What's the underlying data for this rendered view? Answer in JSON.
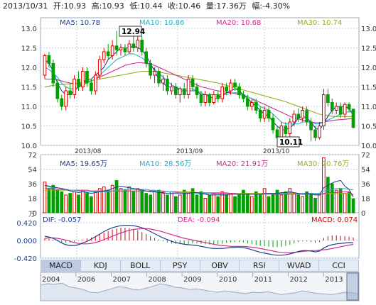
{
  "header": {
    "date": "2013/10/31",
    "open": "开:10.93",
    "high": "高:10.93",
    "low": "低:10.44",
    "close": "收:10.46",
    "volume": "量:17.36万",
    "change": "幅:-4.30%"
  },
  "ma_legend": {
    "ma5": "MA5: 10.78",
    "ma10": "MA10: 10.86",
    "ma20": "MA20: 10.68",
    "ma30": "MA30: 10.74"
  },
  "vol_legend": {
    "ma5": "MA5: 19.65万",
    "ma10": "MA10: 28.56万",
    "ma20": "MA20: 21.91万",
    "ma30": "MA30: 20.76万"
  },
  "vol_unit": "万",
  "macd_legend": {
    "dif": "DIF: -0.057",
    "dea": "DEA: -0.094",
    "macd": "MACD: 0.074"
  },
  "price_high_label": "12.94",
  "price_low_label": "10.11",
  "date_ticks": [
    "2013/08",
    "2013/09",
    "2013/10"
  ],
  "tabs": [
    "MACD",
    "KDJ",
    "BOLL",
    "PSY",
    "OBV",
    "RSI",
    "WVAD",
    "CCI"
  ],
  "active_tab": "MACD",
  "nav_years": [
    "2004",
    "2006",
    "2007",
    "2008",
    "2009",
    "2010",
    "2011",
    "2012",
    "2013"
  ],
  "colors": {
    "up": "#dd0000",
    "down": "#00a000",
    "ma5": "#1e3f8c",
    "ma10": "#24b0c8",
    "ma20": "#d42a8e",
    "ma30": "#9aab1e",
    "grid": "#c9d3e0",
    "dif": "#1e3f8c",
    "dea": "#d42a8e"
  },
  "chart_data": {
    "type": "candlestick",
    "price_axis": {
      "ylim": [
        10.0,
        13.0
      ],
      "ticks": [
        "13.0",
        "12.5",
        "12.0",
        "11.5",
        "11.0",
        "10.5",
        "10.0"
      ]
    },
    "volume_axis": {
      "ylim": [
        0,
        72
      ],
      "ticks": [
        "72",
        "54",
        "36",
        "18",
        "0"
      ],
      "unit": "万"
    },
    "macd_axis": {
      "ylim": [
        -0.42,
        0.42
      ],
      "ticks": [
        "0.420",
        "0.000",
        "-0.420"
      ]
    },
    "candles": [
      [
        11.8,
        12.3,
        12.35,
        11.7
      ],
      [
        12.3,
        12.1,
        12.4,
        12.0
      ],
      [
        12.1,
        11.6,
        12.2,
        11.5
      ],
      [
        11.6,
        11.2,
        11.7,
        11.1
      ],
      [
        11.2,
        11.0,
        11.3,
        10.9
      ],
      [
        11.0,
        11.4,
        11.5,
        10.9
      ],
      [
        11.4,
        11.3,
        11.6,
        11.2
      ],
      [
        11.3,
        11.7,
        11.8,
        11.2
      ],
      [
        11.7,
        11.5,
        11.9,
        11.4
      ],
      [
        11.5,
        11.9,
        12.0,
        11.4
      ],
      [
        11.9,
        11.6,
        12.0,
        11.5
      ],
      [
        11.6,
        11.4,
        11.7,
        11.3
      ],
      [
        11.4,
        11.8,
        11.9,
        11.3
      ],
      [
        11.8,
        12.2,
        12.3,
        11.7
      ],
      [
        12.2,
        12.4,
        12.5,
        12.1
      ],
      [
        12.4,
        12.3,
        12.6,
        12.2
      ],
      [
        12.3,
        12.55,
        12.7,
        12.2
      ],
      [
        12.55,
        12.45,
        12.94,
        12.3
      ],
      [
        12.45,
        12.5,
        12.6,
        12.3
      ],
      [
        12.5,
        12.4,
        12.6,
        12.3
      ],
      [
        12.4,
        12.6,
        12.7,
        12.35
      ],
      [
        12.6,
        12.5,
        12.8,
        12.4
      ],
      [
        12.5,
        12.7,
        12.85,
        12.4
      ],
      [
        12.7,
        12.4,
        12.8,
        12.3
      ],
      [
        12.4,
        12.1,
        12.5,
        12.0
      ],
      [
        12.1,
        11.8,
        12.2,
        11.7
      ],
      [
        11.8,
        11.9,
        12.0,
        11.6
      ],
      [
        11.9,
        11.6,
        12.0,
        11.5
      ],
      [
        11.6,
        11.7,
        11.8,
        11.4
      ],
      [
        11.7,
        11.4,
        11.8,
        11.3
      ],
      [
        11.4,
        11.5,
        11.6,
        11.3
      ],
      [
        11.5,
        11.3,
        11.6,
        11.2
      ],
      [
        11.3,
        11.45,
        11.5,
        11.1
      ],
      [
        11.45,
        11.3,
        11.6,
        11.2
      ],
      [
        11.3,
        11.7,
        11.8,
        11.2
      ],
      [
        11.7,
        11.5,
        11.8,
        11.4
      ],
      [
        11.5,
        11.3,
        11.6,
        11.2
      ],
      [
        11.3,
        11.1,
        11.4,
        11.0
      ],
      [
        11.1,
        11.3,
        11.4,
        11.0
      ],
      [
        11.3,
        11.1,
        11.35,
        11.0
      ],
      [
        11.1,
        11.3,
        11.4,
        11.05
      ],
      [
        11.3,
        11.2,
        11.4,
        11.1
      ],
      [
        11.2,
        11.5,
        11.6,
        11.1
      ],
      [
        11.5,
        11.4,
        11.6,
        11.3
      ],
      [
        11.4,
        11.6,
        11.7,
        11.3
      ],
      [
        11.6,
        11.5,
        11.7,
        11.4
      ],
      [
        11.5,
        11.3,
        11.6,
        11.2
      ],
      [
        11.3,
        11.2,
        11.4,
        11.1
      ],
      [
        11.2,
        11.0,
        11.3,
        10.9
      ],
      [
        11.0,
        11.1,
        11.2,
        10.9
      ],
      [
        11.1,
        10.9,
        11.2,
        10.8
      ],
      [
        10.9,
        10.7,
        11.0,
        10.6
      ],
      [
        10.7,
        10.9,
        11.0,
        10.6
      ],
      [
        10.9,
        10.7,
        11.0,
        10.6
      ],
      [
        10.7,
        10.4,
        10.8,
        10.3
      ],
      [
        10.4,
        10.2,
        10.5,
        10.1
      ],
      [
        10.2,
        10.5,
        10.6,
        10.15
      ],
      [
        10.5,
        10.3,
        10.6,
        10.2
      ],
      [
        10.3,
        10.6,
        10.7,
        10.2
      ],
      [
        10.6,
        10.8,
        10.9,
        10.5
      ],
      [
        10.8,
        10.7,
        10.95,
        10.6
      ],
      [
        10.7,
        10.9,
        11.0,
        10.6
      ],
      [
        10.9,
        10.6,
        11.0,
        10.5
      ],
      [
        10.6,
        10.4,
        10.7,
        10.11
      ],
      [
        10.4,
        10.2,
        10.5,
        10.11
      ],
      [
        10.2,
        10.5,
        10.6,
        10.15
      ],
      [
        10.5,
        11.3,
        11.45,
        10.4
      ],
      [
        11.3,
        11.1,
        11.45,
        11.0
      ],
      [
        11.1,
        10.9,
        11.2,
        10.8
      ],
      [
        10.9,
        11.0,
        11.1,
        10.8
      ],
      [
        11.0,
        10.8,
        11.1,
        10.7
      ],
      [
        10.8,
        11.05,
        11.1,
        10.7
      ],
      [
        11.05,
        10.93,
        11.1,
        10.85
      ],
      [
        10.93,
        10.46,
        10.93,
        10.44
      ]
    ],
    "ma5": [
      12.2,
      12.1,
      11.9,
      11.6,
      11.4,
      11.3,
      11.3,
      11.4,
      11.5,
      11.6,
      11.7,
      11.7,
      11.8,
      11.9,
      12.0,
      12.2,
      12.3,
      12.4,
      12.5,
      12.5,
      12.5,
      12.55,
      12.5,
      12.45,
      12.3,
      12.1,
      11.9,
      11.7,
      11.6,
      11.5,
      11.5,
      11.5,
      11.4,
      11.4,
      11.4,
      11.4,
      11.4,
      11.3,
      11.3,
      11.25,
      11.2,
      11.2,
      11.3,
      11.35,
      11.4,
      11.45,
      11.4,
      11.3,
      11.2,
      11.1,
      11.0,
      10.9,
      10.8,
      10.75,
      10.6,
      10.5,
      10.4,
      10.4,
      10.45,
      10.55,
      10.7,
      10.75,
      10.7,
      10.6,
      10.45,
      10.4,
      10.55,
      10.75,
      10.9,
      11.0,
      11.0,
      11.0,
      10.95,
      10.78
    ],
    "ma10": [
      12.0,
      11.95,
      11.85,
      11.75,
      11.6,
      11.5,
      11.45,
      11.45,
      11.5,
      11.55,
      11.6,
      11.65,
      11.7,
      11.8,
      11.9,
      12.0,
      12.1,
      12.2,
      12.25,
      12.3,
      12.35,
      12.35,
      12.3,
      12.25,
      12.15,
      12.05,
      11.95,
      11.85,
      11.75,
      11.65,
      11.55,
      11.5,
      11.45,
      11.45,
      11.45,
      11.45,
      11.4,
      11.35,
      11.3,
      11.3,
      11.3,
      11.3,
      11.3,
      11.3,
      11.35,
      11.35,
      11.35,
      11.3,
      11.25,
      11.2,
      11.1,
      11.0,
      10.95,
      10.9,
      10.8,
      10.7,
      10.6,
      10.55,
      10.55,
      10.55,
      10.55,
      10.6,
      10.6,
      10.6,
      10.55,
      10.55,
      10.6,
      10.65,
      10.7,
      10.75,
      10.8,
      10.85,
      10.86,
      10.86
    ],
    "ma20": [
      11.7,
      11.7,
      11.7,
      11.68,
      11.65,
      11.62,
      11.6,
      11.58,
      11.58,
      11.6,
      11.62,
      11.65,
      11.7,
      11.75,
      11.8,
      11.85,
      11.9,
      11.95,
      12.0,
      12.05,
      12.08,
      12.1,
      12.12,
      12.12,
      12.1,
      12.08,
      12.05,
      12.0,
      11.95,
      11.9,
      11.85,
      11.8,
      11.75,
      11.7,
      11.65,
      11.6,
      11.55,
      11.5,
      11.48,
      11.45,
      11.42,
      11.4,
      11.38,
      11.36,
      11.35,
      11.33,
      11.3,
      11.28,
      11.25,
      11.2,
      11.15,
      11.1,
      11.05,
      11.0,
      10.95,
      10.9,
      10.85,
      10.8,
      10.75,
      10.7,
      10.68,
      10.65,
      10.62,
      10.6,
      10.58,
      10.58,
      10.6,
      10.62,
      10.64,
      10.65,
      10.66,
      10.67,
      10.68,
      10.68
    ],
    "ma30": [
      11.5,
      11.52,
      11.54,
      11.55,
      11.56,
      11.57,
      11.58,
      11.59,
      11.6,
      11.62,
      11.64,
      11.66,
      11.68,
      11.7,
      11.72,
      11.74,
      11.76,
      11.78,
      11.8,
      11.82,
      11.84,
      11.86,
      11.88,
      11.9,
      11.9,
      11.9,
      11.89,
      11.88,
      11.86,
      11.84,
      11.82,
      11.8,
      11.78,
      11.76,
      11.74,
      11.72,
      11.7,
      11.68,
      11.66,
      11.64,
      11.62,
      11.6,
      11.57,
      11.54,
      11.51,
      11.48,
      11.45,
      11.42,
      11.39,
      11.36,
      11.33,
      11.3,
      11.27,
      11.24,
      11.21,
      11.18,
      11.15,
      11.12,
      11.08,
      11.04,
      11.0,
      10.96,
      10.92,
      10.88,
      10.84,
      10.8,
      10.78,
      10.76,
      10.75,
      10.74,
      10.74,
      10.74,
      10.74,
      10.74
    ],
    "volume": [
      38,
      30,
      34,
      28,
      26,
      22,
      24,
      26,
      22,
      28,
      24,
      20,
      26,
      30,
      32,
      28,
      34,
      40,
      30,
      28,
      32,
      26,
      30,
      28,
      24,
      22,
      26,
      28,
      24,
      22,
      26,
      20,
      22,
      28,
      24,
      30,
      22,
      26,
      18,
      22,
      24,
      20,
      26,
      22,
      24,
      20,
      22,
      28,
      24,
      20,
      26,
      22,
      30,
      20,
      24,
      28,
      22,
      26,
      30,
      24,
      22,
      20,
      26,
      24,
      18,
      22,
      68,
      44,
      36,
      28,
      30,
      24,
      26,
      17.36
    ],
    "vol_ma5": [
      34,
      33,
      32,
      31,
      30,
      29,
      27,
      26,
      25,
      26,
      25,
      24,
      25,
      26,
      27,
      28,
      30,
      32,
      33,
      32,
      31,
      30,
      29,
      28,
      27,
      26,
      26,
      25,
      25,
      24,
      24,
      24,
      24,
      24,
      24,
      25,
      25,
      24,
      23,
      22,
      22,
      22,
      22,
      22,
      23,
      23,
      23,
      23,
      23,
      23,
      23,
      23,
      24,
      24,
      24,
      24,
      25,
      25,
      26,
      25,
      24,
      23,
      24,
      23,
      22,
      22,
      31,
      34,
      37,
      39,
      40,
      33,
      29,
      19.65
    ],
    "vol_ma10": [
      32,
      32,
      31,
      31,
      30,
      29,
      28,
      28,
      27,
      27,
      26,
      26,
      26,
      26,
      26,
      26,
      27,
      28,
      29,
      29,
      29,
      29,
      29,
      29,
      29,
      28,
      28,
      27,
      27,
      26,
      26,
      25,
      25,
      25,
      25,
      25,
      24,
      24,
      24,
      24,
      23,
      23,
      23,
      23,
      23,
      23,
      23,
      23,
      23,
      23,
      23,
      23,
      23,
      24,
      24,
      24,
      24,
      24,
      25,
      25,
      24,
      24,
      24,
      24,
      24,
      24,
      27,
      28,
      29,
      30,
      30,
      30,
      29,
      28.56
    ],
    "vol_ma20": [
      30,
      30,
      30,
      29,
      29,
      29,
      28,
      28,
      28,
      28,
      28,
      27,
      27,
      27,
      27,
      27,
      27,
      27,
      27,
      27,
      27,
      27,
      27,
      27,
      27,
      27,
      27,
      27,
      26,
      26,
      26,
      26,
      25,
      25,
      25,
      25,
      25,
      25,
      24,
      24,
      24,
      24,
      24,
      24,
      24,
      24,
      23,
      23,
      23,
      23,
      23,
      23,
      23,
      23,
      23,
      23,
      23,
      23,
      23,
      23,
      23,
      23,
      23,
      23,
      23,
      23,
      24,
      25,
      25,
      25,
      26,
      26,
      26,
      21.91
    ],
    "vol_ma30": [
      28,
      28,
      28,
      28,
      28,
      28,
      28,
      28,
      28,
      28,
      28,
      27,
      27,
      27,
      27,
      27,
      27,
      27,
      27,
      27,
      27,
      27,
      27,
      27,
      27,
      27,
      27,
      27,
      26,
      26,
      26,
      26,
      26,
      26,
      26,
      26,
      25,
      25,
      25,
      25,
      25,
      25,
      25,
      25,
      24,
      24,
      24,
      24,
      24,
      24,
      24,
      24,
      24,
      24,
      24,
      24,
      24,
      24,
      24,
      24,
      24,
      23,
      23,
      23,
      23,
      23,
      23,
      24,
      24,
      24,
      24,
      24,
      24,
      20.76
    ],
    "macd_hist": [
      0.05,
      0.04,
      0.02,
      -0.02,
      -0.05,
      -0.06,
      -0.05,
      -0.03,
      -0.01,
      0.02,
      0.05,
      0.07,
      0.1,
      0.14,
      0.18,
      0.22,
      0.26,
      0.28,
      0.3,
      0.3,
      0.29,
      0.27,
      0.24,
      0.2,
      0.15,
      0.1,
      0.06,
      0.02,
      -0.02,
      -0.05,
      -0.07,
      -0.08,
      -0.09,
      -0.09,
      -0.08,
      -0.07,
      -0.07,
      -0.08,
      -0.09,
      -0.1,
      -0.1,
      -0.09,
      -0.08,
      -0.06,
      -0.05,
      -0.04,
      -0.04,
      -0.05,
      -0.07,
      -0.09,
      -0.11,
      -0.13,
      -0.14,
      -0.15,
      -0.16,
      -0.16,
      -0.15,
      -0.13,
      -0.1,
      -0.07,
      -0.04,
      -0.02,
      -0.02,
      -0.04,
      -0.06,
      -0.04,
      0.06,
      0.1,
      0.12,
      0.12,
      0.11,
      0.1,
      0.09,
      0.074
    ],
    "dif": [
      0.1,
      0.08,
      0.05,
      0.0,
      -0.06,
      -0.1,
      -0.12,
      -0.12,
      -0.1,
      -0.06,
      -0.02,
      0.03,
      0.09,
      0.15,
      0.21,
      0.26,
      0.3,
      0.33,
      0.35,
      0.36,
      0.36,
      0.35,
      0.33,
      0.3,
      0.26,
      0.21,
      0.16,
      0.11,
      0.06,
      0.02,
      -0.02,
      -0.05,
      -0.07,
      -0.09,
      -0.1,
      -0.11,
      -0.12,
      -0.14,
      -0.16,
      -0.18,
      -0.19,
      -0.19,
      -0.19,
      -0.18,
      -0.17,
      -0.16,
      -0.16,
      -0.17,
      -0.19,
      -0.22,
      -0.25,
      -0.28,
      -0.3,
      -0.32,
      -0.34,
      -0.35,
      -0.35,
      -0.34,
      -0.32,
      -0.29,
      -0.26,
      -0.24,
      -0.24,
      -0.25,
      -0.27,
      -0.25,
      -0.18,
      -0.13,
      -0.1,
      -0.08,
      -0.07,
      -0.06,
      -0.05,
      -0.057
    ],
    "dea": [
      0.05,
      0.06,
      0.06,
      0.05,
      0.03,
      0.01,
      -0.02,
      -0.05,
      -0.07,
      -0.08,
      -0.08,
      -0.07,
      -0.05,
      -0.02,
      0.02,
      0.06,
      0.1,
      0.14,
      0.18,
      0.21,
      0.24,
      0.26,
      0.27,
      0.28,
      0.28,
      0.27,
      0.25,
      0.23,
      0.2,
      0.17,
      0.14,
      0.11,
      0.08,
      0.05,
      0.03,
      0.01,
      -0.01,
      -0.03,
      -0.05,
      -0.07,
      -0.09,
      -0.11,
      -0.12,
      -0.13,
      -0.14,
      -0.14,
      -0.14,
      -0.14,
      -0.15,
      -0.16,
      -0.17,
      -0.19,
      -0.21,
      -0.23,
      -0.25,
      -0.27,
      -0.28,
      -0.29,
      -0.29,
      -0.28,
      -0.27,
      -0.26,
      -0.25,
      -0.24,
      -0.24,
      -0.23,
      -0.22,
      -0.21,
      -0.19,
      -0.17,
      -0.15,
      -0.13,
      -0.11,
      -0.094
    ],
    "overview": [
      0.55,
      0.6,
      0.58,
      0.62,
      0.5,
      0.45,
      0.4,
      0.3,
      0.28,
      0.35,
      0.42,
      0.5,
      0.47,
      0.4,
      0.38,
      0.45,
      0.52,
      0.6,
      0.55,
      0.48,
      0.45,
      0.4,
      0.42,
      0.38,
      0.33,
      0.3,
      0.35,
      0.32,
      0.28,
      0.25,
      0.3,
      0.28,
      0.32,
      0.27,
      0.22,
      0.25,
      0.28,
      0.35,
      0.3,
      0.26,
      0.24,
      0.22,
      0.25,
      0.3,
      0.28,
      0.24
    ]
  }
}
